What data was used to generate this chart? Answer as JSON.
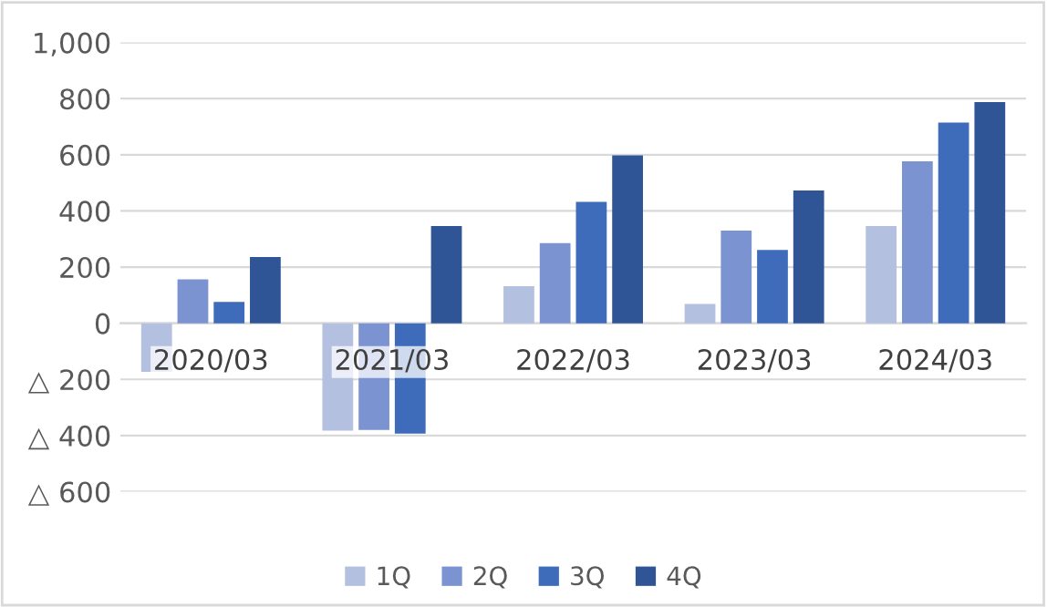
{
  "chart_data": {
    "type": "bar",
    "categories": [
      "2020/03",
      "2021/03",
      "2022/03",
      "2023/03",
      "2024/03"
    ],
    "series": [
      {
        "name": "1Q",
        "color": "#b4c0e0",
        "values": [
          -173,
          -383,
          132,
          69,
          346
        ]
      },
      {
        "name": "2Q",
        "color": "#7b93d0",
        "values": [
          156,
          -380,
          285,
          330,
          577
        ]
      },
      {
        "name": "3Q",
        "color": "#3f6bbb",
        "values": [
          76,
          -393,
          432,
          261,
          715
        ]
      },
      {
        "name": "4Q",
        "color": "#2f5597",
        "values": [
          236,
          346,
          598,
          473,
          788
        ]
      }
    ],
    "ylim": [
      -600,
      1000
    ],
    "yticks": [
      {
        "value": -600,
        "label": "△ 600"
      },
      {
        "value": -400,
        "label": "△ 400"
      },
      {
        "value": -200,
        "label": "△ 200"
      },
      0,
      200,
      400,
      600,
      800,
      {
        "value": 1000,
        "label": "1,000"
      }
    ],
    "grid": "y",
    "legend": "bottom"
  }
}
